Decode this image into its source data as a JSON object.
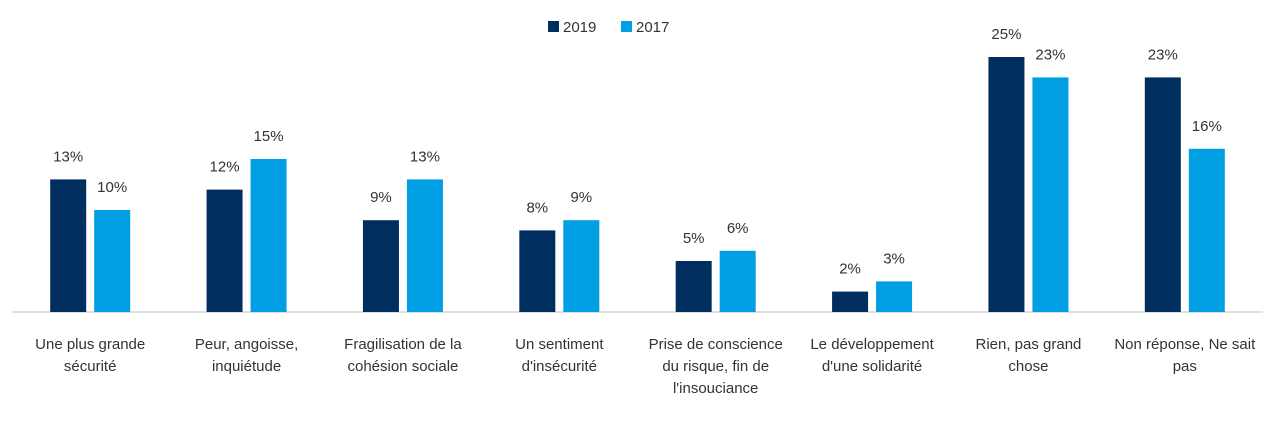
{
  "chart_data": {
    "type": "bar",
    "categories": [
      "Une plus grande sécurité",
      "Peur, angoisse, inquiétude",
      "Fragilisation de la cohésion sociale",
      "Un sentiment d'insécurité",
      "Prise de conscience du risque, fin de l'insouciance",
      "Le développement d'une solidarité",
      "Rien, pas grand chose",
      "Non réponse, Ne sait pas"
    ],
    "series": [
      {
        "name": "2019",
        "color": "#002f5f",
        "values": [
          13,
          12,
          9,
          8,
          5,
          2,
          25,
          23
        ],
        "value_labels": [
          "13%",
          "12%",
          "9%",
          "8%",
          "5%",
          "2%",
          "25%",
          "23%"
        ]
      },
      {
        "name": "2017",
        "color": "#009fe3",
        "values": [
          10,
          15,
          13,
          9,
          6,
          3,
          23,
          16
        ],
        "value_labels": [
          "10%",
          "15%",
          "13%",
          "9%",
          "6%",
          "3%",
          "23%",
          "16%"
        ]
      }
    ],
    "legend": "top"
  }
}
